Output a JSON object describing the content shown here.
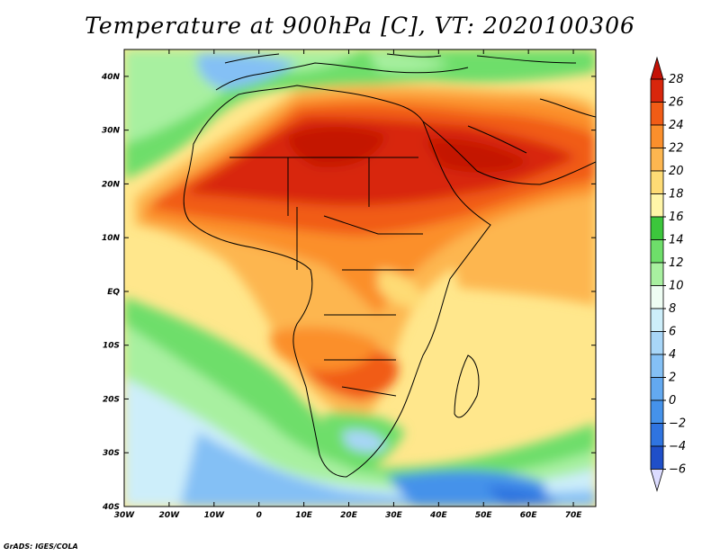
{
  "title": "Temperature at 900hPa [C], VT: 2020100306",
  "credit": "GrADS: IGES/COLA",
  "axes": {
    "lon_range": [
      -30,
      75
    ],
    "lat_range": [
      -40,
      45
    ],
    "x_ticks": [
      {
        "value": -30,
        "label": "30W"
      },
      {
        "value": -20,
        "label": "20W"
      },
      {
        "value": -10,
        "label": "10W"
      },
      {
        "value": 0,
        "label": "0"
      },
      {
        "value": 10,
        "label": "10E"
      },
      {
        "value": 20,
        "label": "20E"
      },
      {
        "value": 30,
        "label": "30E"
      },
      {
        "value": 40,
        "label": "40E"
      },
      {
        "value": 50,
        "label": "50E"
      },
      {
        "value": 60,
        "label": "60E"
      },
      {
        "value": 70,
        "label": "70E"
      }
    ],
    "y_ticks": [
      {
        "value": 40,
        "label": "40N"
      },
      {
        "value": 30,
        "label": "30N"
      },
      {
        "value": 20,
        "label": "20N"
      },
      {
        "value": 10,
        "label": "10N"
      },
      {
        "value": 0,
        "label": "EQ"
      },
      {
        "value": -10,
        "label": "10S"
      },
      {
        "value": -20,
        "label": "20S"
      },
      {
        "value": -30,
        "label": "30S"
      },
      {
        "value": -40,
        "label": "40S"
      }
    ]
  },
  "colorbar": {
    "levels": [
      -6,
      -4,
      -2,
      0,
      2,
      4,
      6,
      8,
      10,
      12,
      14,
      16,
      18,
      20,
      22,
      24,
      26,
      28
    ],
    "colors": [
      "#0d1a78",
      "#1f4fc9",
      "#2f74e0",
      "#4592ea",
      "#63a9f0",
      "#84c0f5",
      "#a8d6f8",
      "#cdeefa",
      "#eefdf3",
      "#a8f0a0",
      "#6ede6a",
      "#3cc63c",
      "#fff5a8",
      "#fedb75",
      "#fdb650",
      "#fb8f2c",
      "#f15c16",
      "#d8260c",
      "#c41206"
    ],
    "labels": [
      "28",
      "26",
      "24",
      "22",
      "20",
      "18",
      "16",
      "14",
      "12",
      "10",
      "8",
      "6",
      "4",
      "2",
      "0",
      "−2",
      "−4",
      "−6"
    ]
  }
}
